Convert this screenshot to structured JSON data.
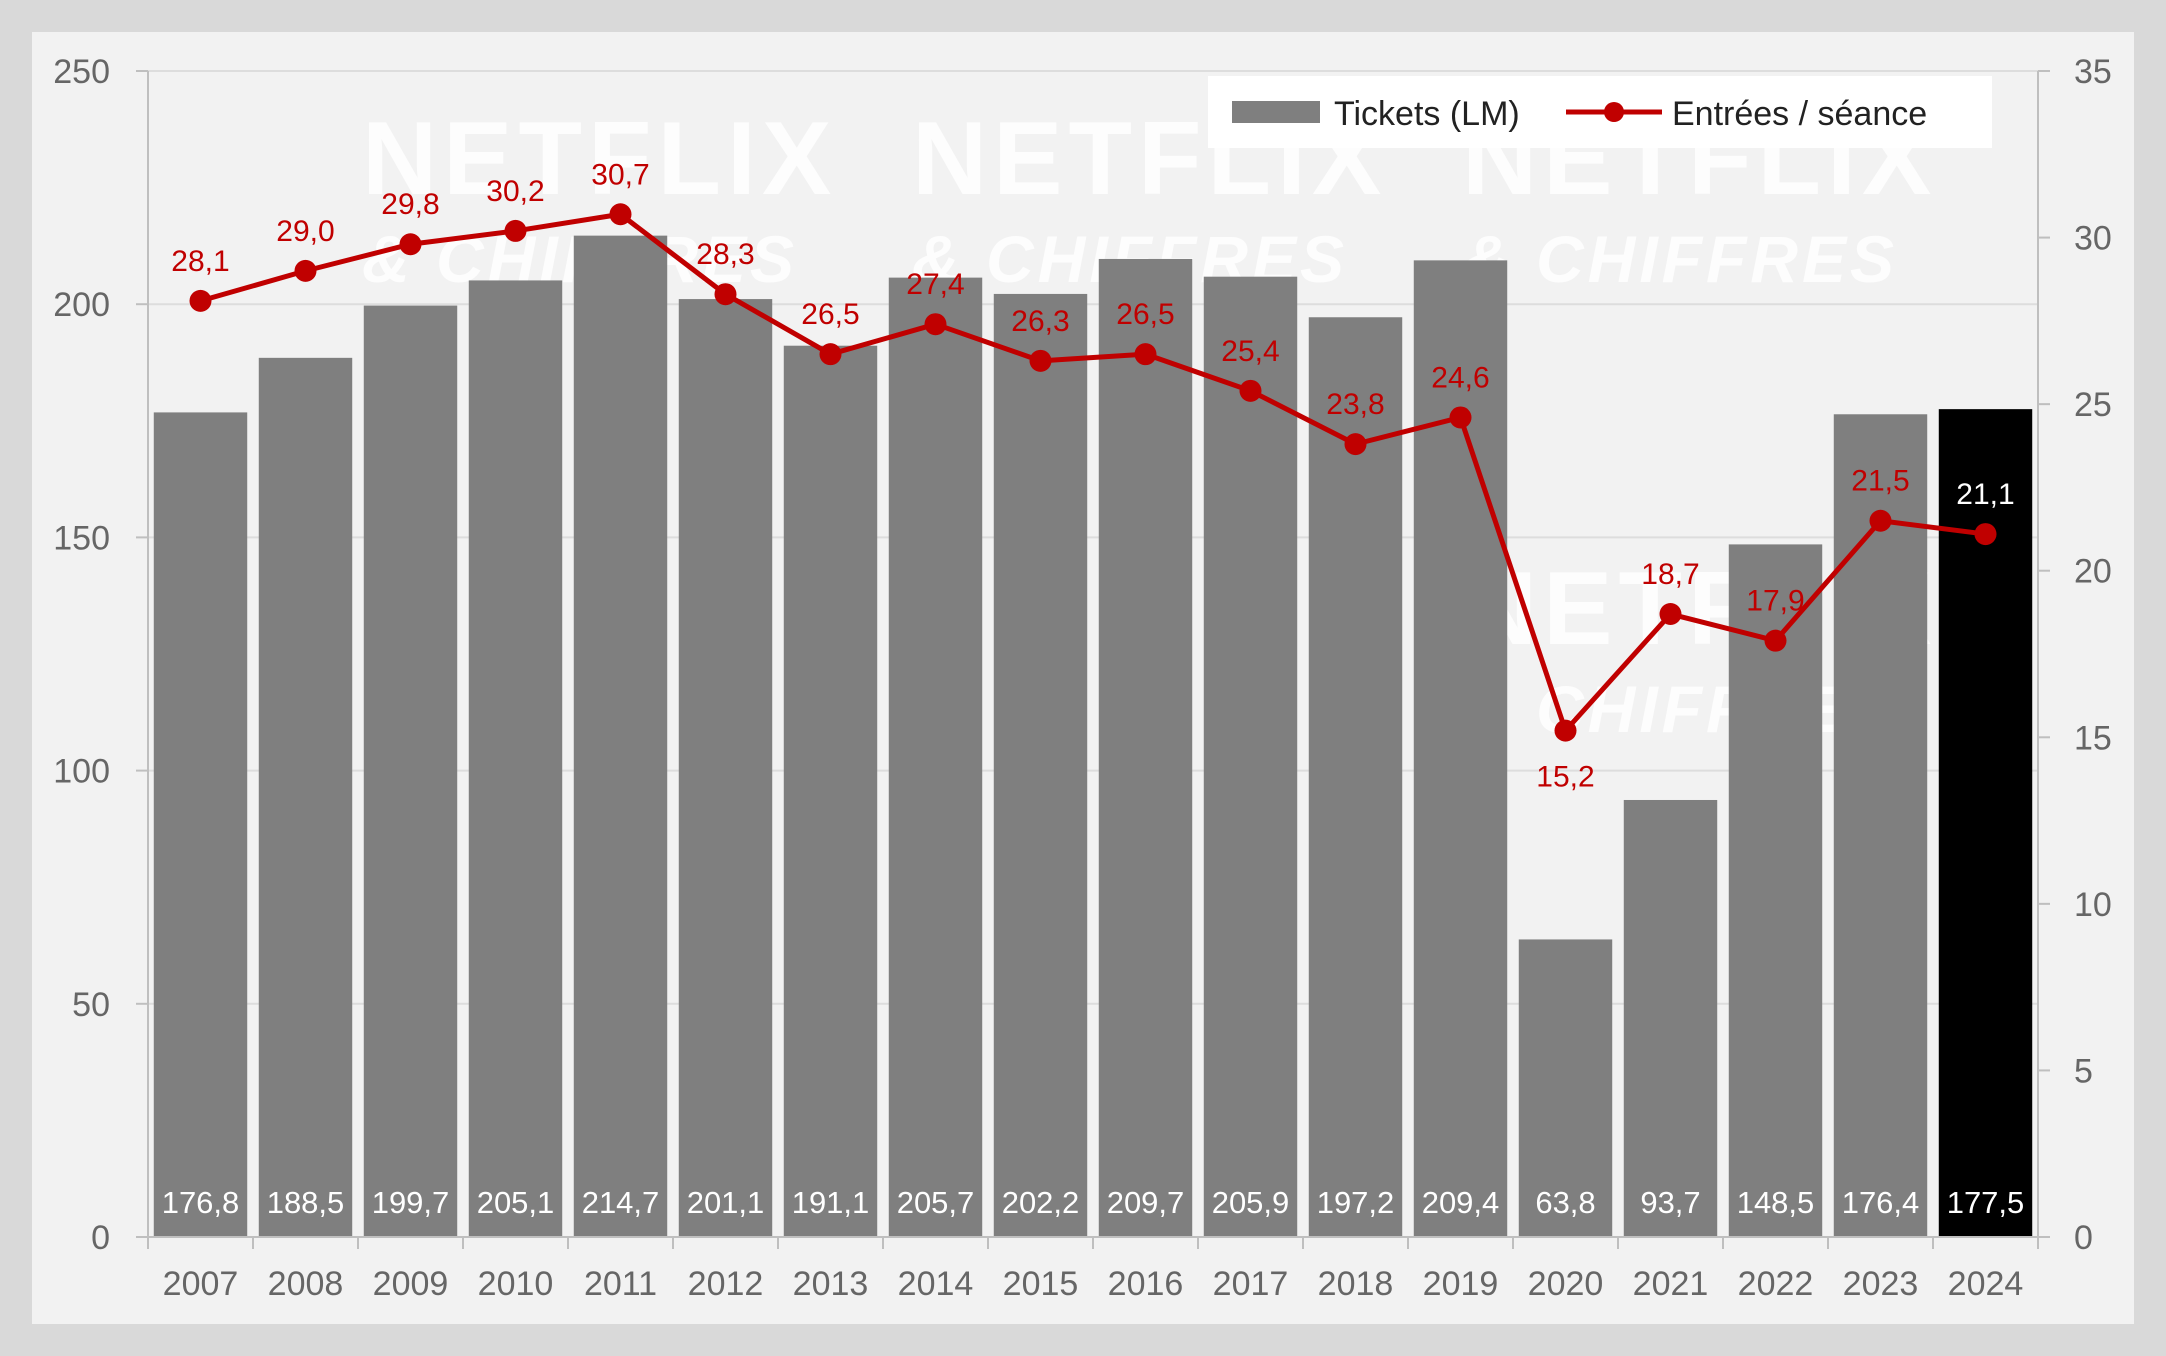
{
  "chart_data": {
    "type": "bar+line",
    "categories": [
      "2007",
      "2008",
      "2009",
      "2010",
      "2011",
      "2012",
      "2013",
      "2014",
      "2015",
      "2016",
      "2017",
      "2018",
      "2019",
      "2020",
      "2021",
      "2022",
      "2023",
      "2024"
    ],
    "series": [
      {
        "name": "Tickets (LM)",
        "type": "bar",
        "axis": "left",
        "values": [
          176.8,
          188.5,
          199.7,
          205.1,
          214.7,
          201.1,
          191.1,
          205.7,
          202.2,
          209.7,
          205.9,
          197.2,
          209.4,
          63.8,
          93.7,
          148.5,
          176.4,
          177.5
        ],
        "labels": [
          "176,8",
          "188,5",
          "199,7",
          "205,1",
          "214,7",
          "201,1",
          "191,1",
          "205,7",
          "202,2",
          "209,7",
          "205,9",
          "197,2",
          "209,4",
          "63,8",
          "93,7",
          "148,5",
          "176,4",
          "177,5"
        ],
        "color": "#7f7f7f",
        "highlight_color": "#000000",
        "highlight_index": 17
      },
      {
        "name": "Entrées / séance",
        "type": "line",
        "axis": "right",
        "values": [
          28.1,
          29.0,
          29.8,
          30.2,
          30.7,
          28.3,
          26.5,
          27.4,
          26.3,
          26.5,
          25.4,
          23.8,
          24.6,
          15.2,
          18.7,
          17.9,
          21.5,
          21.1
        ],
        "labels": [
          "28,1",
          "29,0",
          "29,8",
          "30,2",
          "30,7",
          "28,3",
          "26,5",
          "27,4",
          "26,3",
          "26,5",
          "25,4",
          "23,8",
          "24,6",
          "15,2",
          "18,7",
          "17,9",
          "21,5",
          "21,1"
        ],
        "color": "#c00000",
        "highlight_label_color": "#ffffff"
      }
    ],
    "y_left": {
      "range": [
        0,
        250
      ],
      "ticks": [
        "0",
        "50",
        "100",
        "150",
        "200",
        "250"
      ]
    },
    "y_right": {
      "range": [
        0,
        35
      ],
      "ticks": [
        "0",
        "5",
        "10",
        "15",
        "20",
        "25",
        "30",
        "35"
      ]
    },
    "grid": true,
    "legend": {
      "position": "top-right",
      "entries": [
        "Tickets (LM)",
        "Entrées / séance"
      ]
    },
    "watermark": {
      "title": "NETFLIX",
      "subtitle": "& CHIFFRES"
    }
  }
}
